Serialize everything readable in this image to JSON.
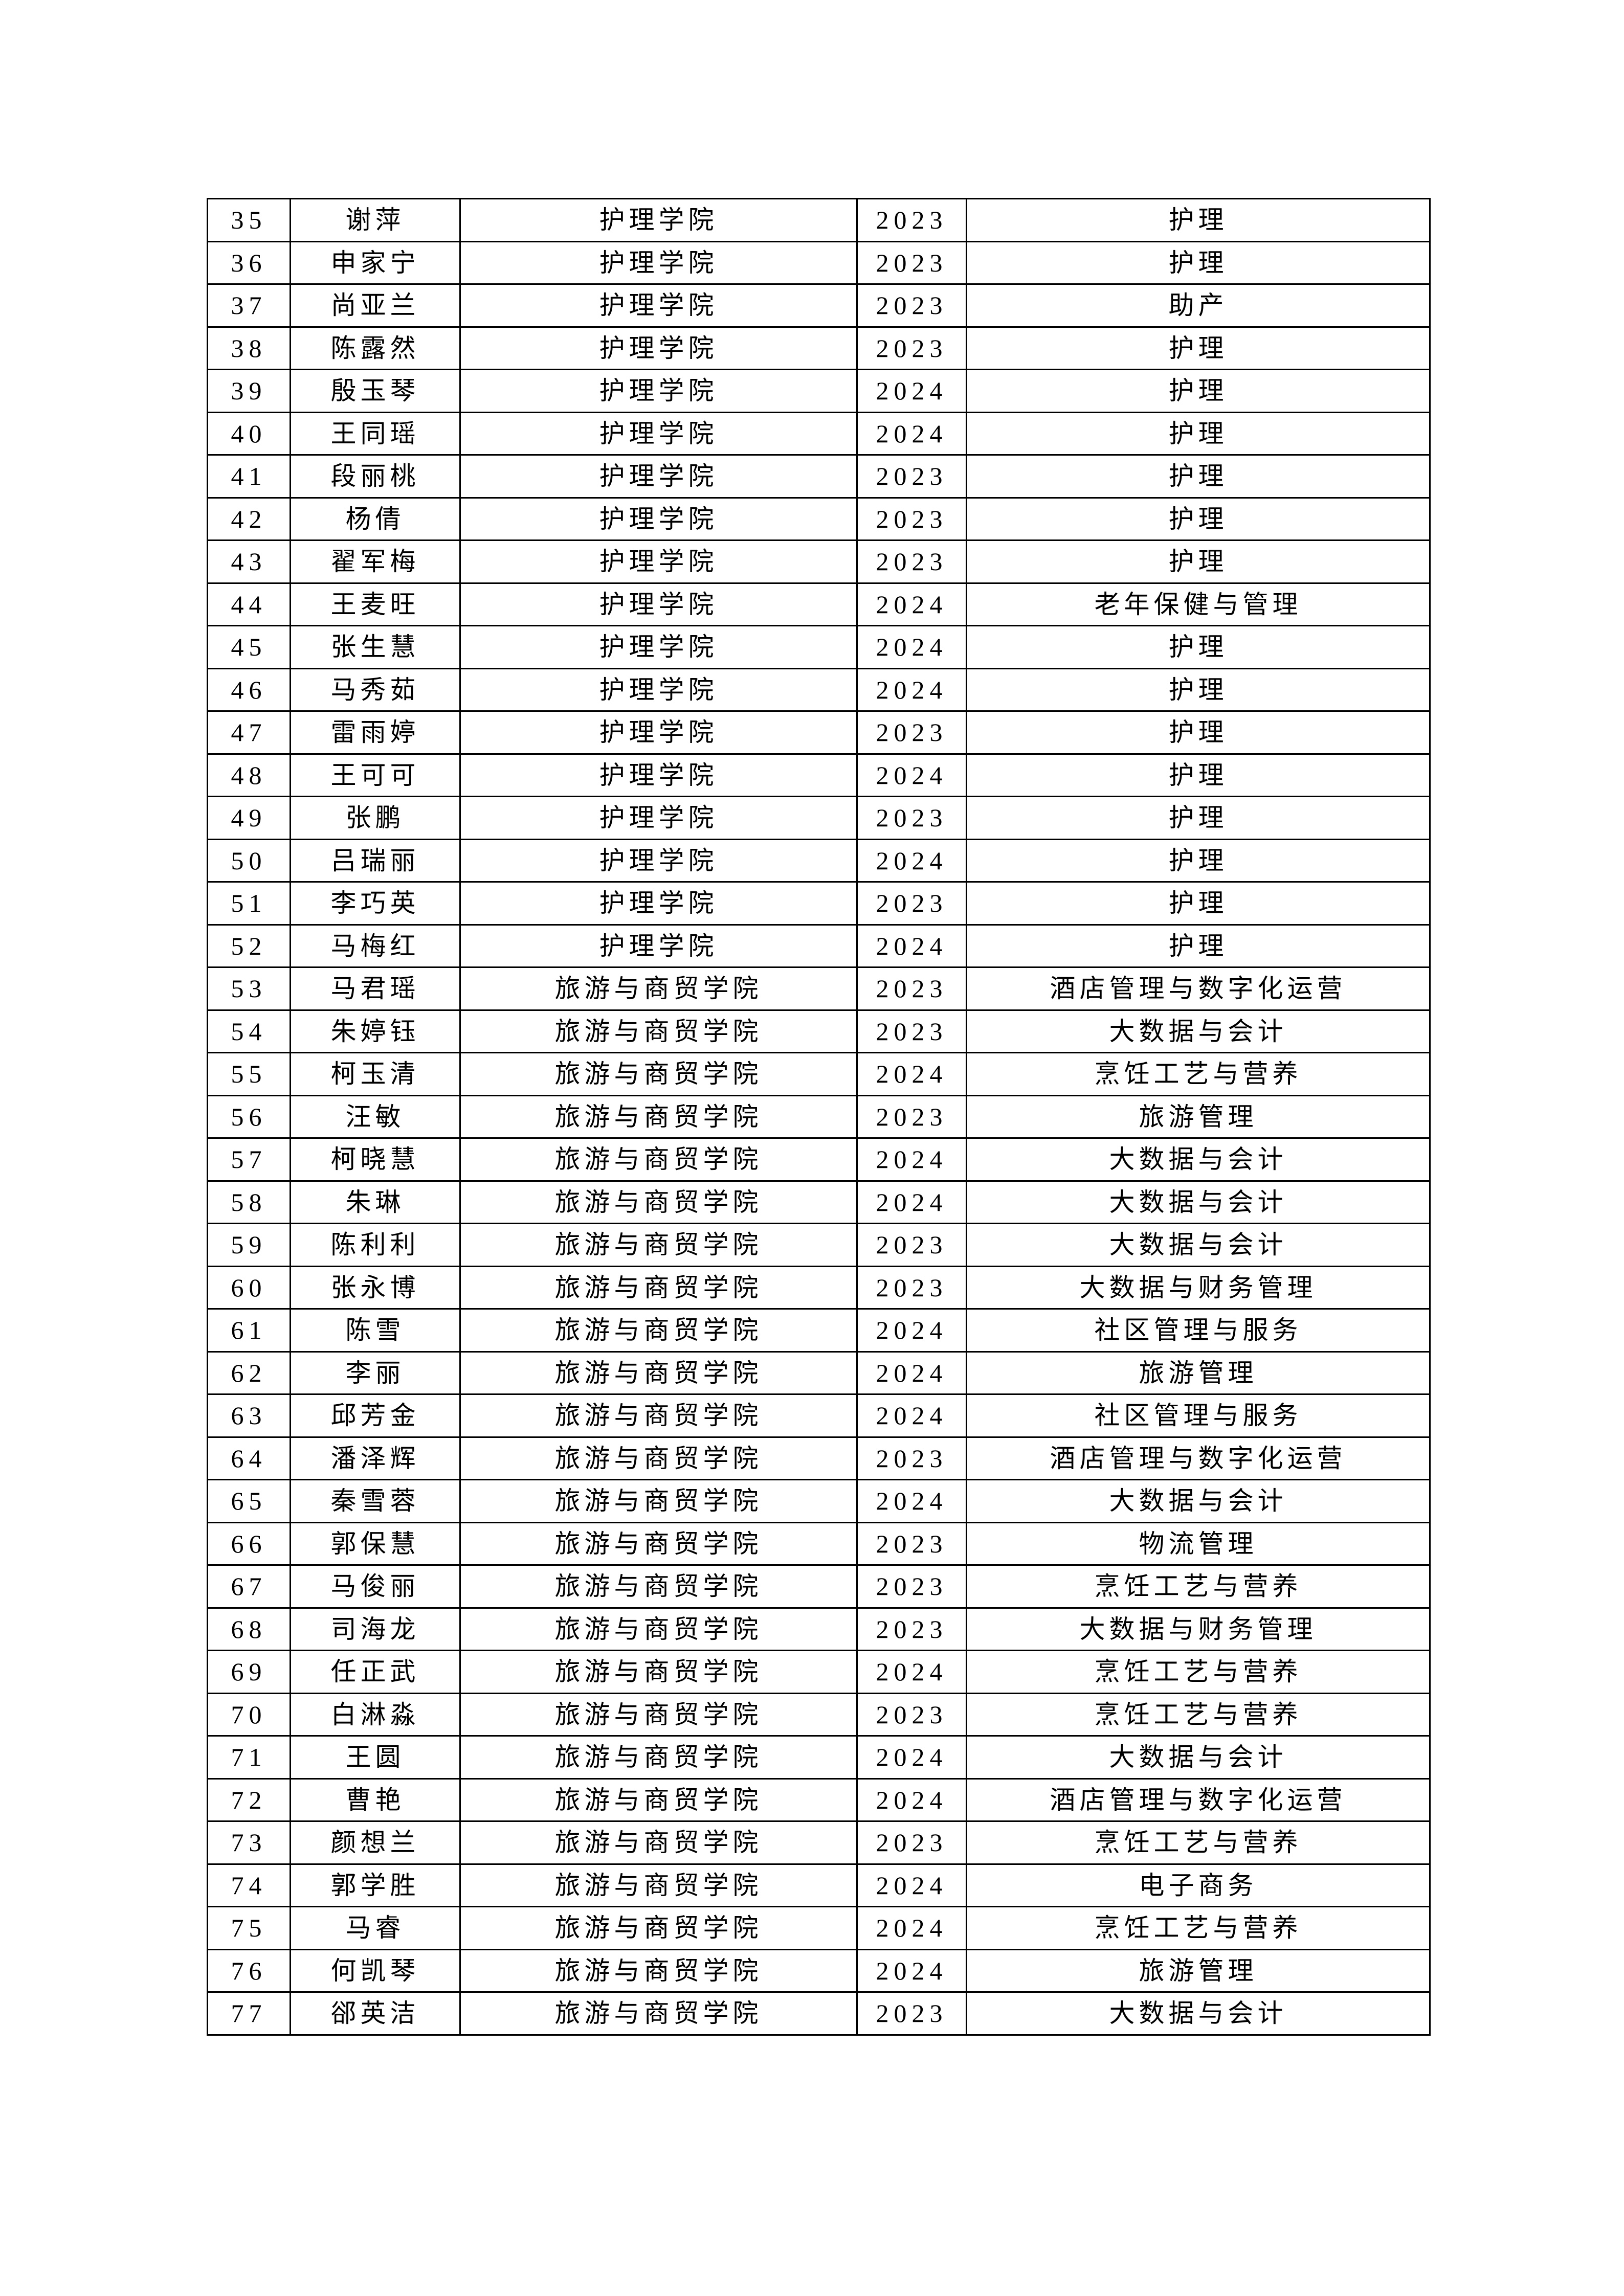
{
  "rows": [
    {
      "no": "35",
      "name": "谢萍",
      "college": "护理学院",
      "year": "2023",
      "major": "护理"
    },
    {
      "no": "36",
      "name": "申家宁",
      "college": "护理学院",
      "year": "2023",
      "major": "护理"
    },
    {
      "no": "37",
      "name": "尚亚兰",
      "college": "护理学院",
      "year": "2023",
      "major": "助产"
    },
    {
      "no": "38",
      "name": "陈露然",
      "college": "护理学院",
      "year": "2023",
      "major": "护理"
    },
    {
      "no": "39",
      "name": "殷玉琴",
      "college": "护理学院",
      "year": "2024",
      "major": "护理"
    },
    {
      "no": "40",
      "name": "王同瑶",
      "college": "护理学院",
      "year": "2024",
      "major": "护理"
    },
    {
      "no": "41",
      "name": "段丽桃",
      "college": "护理学院",
      "year": "2023",
      "major": "护理"
    },
    {
      "no": "42",
      "name": "杨倩",
      "college": "护理学院",
      "year": "2023",
      "major": "护理"
    },
    {
      "no": "43",
      "name": "翟军梅",
      "college": "护理学院",
      "year": "2023",
      "major": "护理"
    },
    {
      "no": "44",
      "name": "王麦旺",
      "college": "护理学院",
      "year": "2024",
      "major": "老年保健与管理"
    },
    {
      "no": "45",
      "name": "张生慧",
      "college": "护理学院",
      "year": "2024",
      "major": "护理"
    },
    {
      "no": "46",
      "name": "马秀茹",
      "college": "护理学院",
      "year": "2024",
      "major": "护理"
    },
    {
      "no": "47",
      "name": "雷雨婷",
      "college": "护理学院",
      "year": "2023",
      "major": "护理"
    },
    {
      "no": "48",
      "name": "王可可",
      "college": "护理学院",
      "year": "2024",
      "major": "护理"
    },
    {
      "no": "49",
      "name": "张鹏",
      "college": "护理学院",
      "year": "2023",
      "major": "护理"
    },
    {
      "no": "50",
      "name": "吕瑞丽",
      "college": "护理学院",
      "year": "2024",
      "major": "护理"
    },
    {
      "no": "51",
      "name": "李巧英",
      "college": "护理学院",
      "year": "2023",
      "major": "护理"
    },
    {
      "no": "52",
      "name": "马梅红",
      "college": "护理学院",
      "year": "2024",
      "major": "护理"
    },
    {
      "no": "53",
      "name": "马君瑶",
      "college": "旅游与商贸学院",
      "year": "2023",
      "major": "酒店管理与数字化运营"
    },
    {
      "no": "54",
      "name": "朱婷钰",
      "college": "旅游与商贸学院",
      "year": "2023",
      "major": "大数据与会计"
    },
    {
      "no": "55",
      "name": "柯玉清",
      "college": "旅游与商贸学院",
      "year": "2024",
      "major": "烹饪工艺与营养"
    },
    {
      "no": "56",
      "name": "汪敏",
      "college": "旅游与商贸学院",
      "year": "2023",
      "major": "旅游管理"
    },
    {
      "no": "57",
      "name": "柯晓慧",
      "college": "旅游与商贸学院",
      "year": "2024",
      "major": "大数据与会计"
    },
    {
      "no": "58",
      "name": "朱琳",
      "college": "旅游与商贸学院",
      "year": "2024",
      "major": "大数据与会计"
    },
    {
      "no": "59",
      "name": "陈利利",
      "college": "旅游与商贸学院",
      "year": "2023",
      "major": "大数据与会计"
    },
    {
      "no": "60",
      "name": "张永博",
      "college": "旅游与商贸学院",
      "year": "2023",
      "major": "大数据与财务管理"
    },
    {
      "no": "61",
      "name": "陈雪",
      "college": "旅游与商贸学院",
      "year": "2024",
      "major": "社区管理与服务"
    },
    {
      "no": "62",
      "name": "李丽",
      "college": "旅游与商贸学院",
      "year": "2024",
      "major": "旅游管理"
    },
    {
      "no": "63",
      "name": "邱芳金",
      "college": "旅游与商贸学院",
      "year": "2024",
      "major": "社区管理与服务"
    },
    {
      "no": "64",
      "name": "潘泽辉",
      "college": "旅游与商贸学院",
      "year": "2023",
      "major": "酒店管理与数字化运营"
    },
    {
      "no": "65",
      "name": "秦雪蓉",
      "college": "旅游与商贸学院",
      "year": "2024",
      "major": "大数据与会计"
    },
    {
      "no": "66",
      "name": "郭保慧",
      "college": "旅游与商贸学院",
      "year": "2023",
      "major": "物流管理"
    },
    {
      "no": "67",
      "name": "马俊丽",
      "college": "旅游与商贸学院",
      "year": "2023",
      "major": "烹饪工艺与营养"
    },
    {
      "no": "68",
      "name": "司海龙",
      "college": "旅游与商贸学院",
      "year": "2023",
      "major": "大数据与财务管理"
    },
    {
      "no": "69",
      "name": "任正武",
      "college": "旅游与商贸学院",
      "year": "2024",
      "major": "烹饪工艺与营养"
    },
    {
      "no": "70",
      "name": "白淋淼",
      "college": "旅游与商贸学院",
      "year": "2023",
      "major": "烹饪工艺与营养"
    },
    {
      "no": "71",
      "name": "王圆",
      "college": "旅游与商贸学院",
      "year": "2024",
      "major": "大数据与会计"
    },
    {
      "no": "72",
      "name": "曹艳",
      "college": "旅游与商贸学院",
      "year": "2024",
      "major": "酒店管理与数字化运营"
    },
    {
      "no": "73",
      "name": "颜想兰",
      "college": "旅游与商贸学院",
      "year": "2023",
      "major": "烹饪工艺与营养"
    },
    {
      "no": "74",
      "name": "郭学胜",
      "college": "旅游与商贸学院",
      "year": "2024",
      "major": "电子商务"
    },
    {
      "no": "75",
      "name": "马睿",
      "college": "旅游与商贸学院",
      "year": "2024",
      "major": "烹饪工艺与营养"
    },
    {
      "no": "76",
      "name": "何凯琴",
      "college": "旅游与商贸学院",
      "year": "2024",
      "major": "旅游管理"
    },
    {
      "no": "77",
      "name": "郤英洁",
      "college": "旅游与商贸学院",
      "year": "2023",
      "major": "大数据与会计"
    }
  ]
}
